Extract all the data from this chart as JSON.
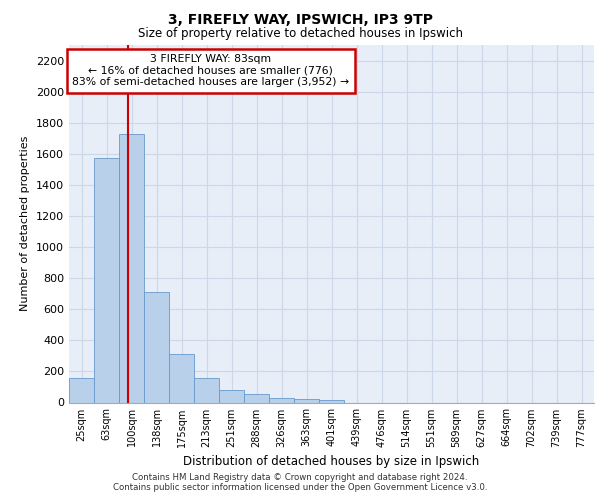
{
  "title1": "3, FIREFLY WAY, IPSWICH, IP3 9TP",
  "title2": "Size of property relative to detached houses in Ipswich",
  "xlabel": "Distribution of detached houses by size in Ipswich",
  "ylabel": "Number of detached properties",
  "footnote1": "Contains HM Land Registry data © Crown copyright and database right 2024.",
  "footnote2": "Contains public sector information licensed under the Open Government Licence v3.0.",
  "bar_labels": [
    "25sqm",
    "63sqm",
    "100sqm",
    "138sqm",
    "175sqm",
    "213sqm",
    "251sqm",
    "288sqm",
    "326sqm",
    "363sqm",
    "401sqm",
    "439sqm",
    "476sqm",
    "514sqm",
    "551sqm",
    "589sqm",
    "627sqm",
    "664sqm",
    "702sqm",
    "739sqm",
    "777sqm"
  ],
  "bar_values": [
    160,
    1570,
    1730,
    710,
    315,
    155,
    80,
    55,
    30,
    22,
    15,
    0,
    0,
    0,
    0,
    0,
    0,
    0,
    0,
    0,
    0
  ],
  "bar_color": "#b8d0ea",
  "bar_edge_color": "#6699cc",
  "grid_color": "#ccd8e8",
  "bg_color": "#e8eef8",
  "red_line_x": 1.85,
  "annotation_text": "3 FIREFLY WAY: 83sqm\n← 16% of detached houses are smaller (776)\n83% of semi-detached houses are larger (3,952) →",
  "annotation_box_color": "#ffffff",
  "annotation_border_color": "#cc0000",
  "ylim": [
    0,
    2300
  ],
  "yticks": [
    0,
    200,
    400,
    600,
    800,
    1000,
    1200,
    1400,
    1600,
    1800,
    2000,
    2200
  ]
}
